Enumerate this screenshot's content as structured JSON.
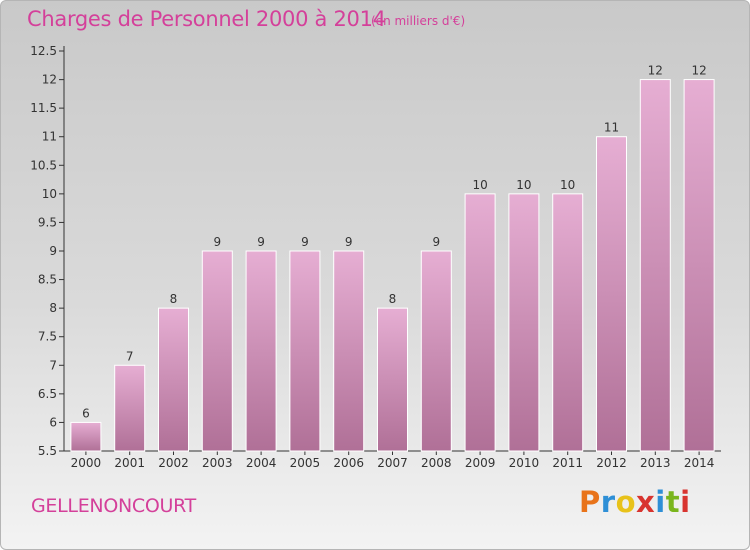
{
  "title": "Charges de Personnel 2000 à 2014",
  "subtitle": "(en milliers d'€)",
  "commune": "GELLENONCOURT",
  "brand": {
    "letters": [
      "P",
      "r",
      "o",
      "x",
      "i",
      "t",
      "i"
    ],
    "colors": [
      "#e8731a",
      "#2e8fd6",
      "#e8c21a",
      "#d8342f",
      "#2e8fd6",
      "#7ab51d",
      "#d8342f"
    ]
  },
  "chart_data": {
    "type": "bar",
    "categories": [
      "2000",
      "2001",
      "2002",
      "2003",
      "2004",
      "2005",
      "2006",
      "2007",
      "2008",
      "2009",
      "2010",
      "2011",
      "2012",
      "2013",
      "2014"
    ],
    "values": [
      6,
      7,
      8,
      9,
      9,
      9,
      9,
      8,
      9,
      10,
      10,
      10,
      11,
      12,
      12
    ],
    "ylim": [
      5.5,
      12.5
    ],
    "yticks": [
      "5.5",
      "6",
      "6.5",
      "7",
      "7.5",
      "8",
      "8.5",
      "9",
      "9.5",
      "10",
      "10.5",
      "11",
      "11.5",
      "12",
      "12.5"
    ],
    "grid": false,
    "bar_color": "#e2a4cc"
  }
}
